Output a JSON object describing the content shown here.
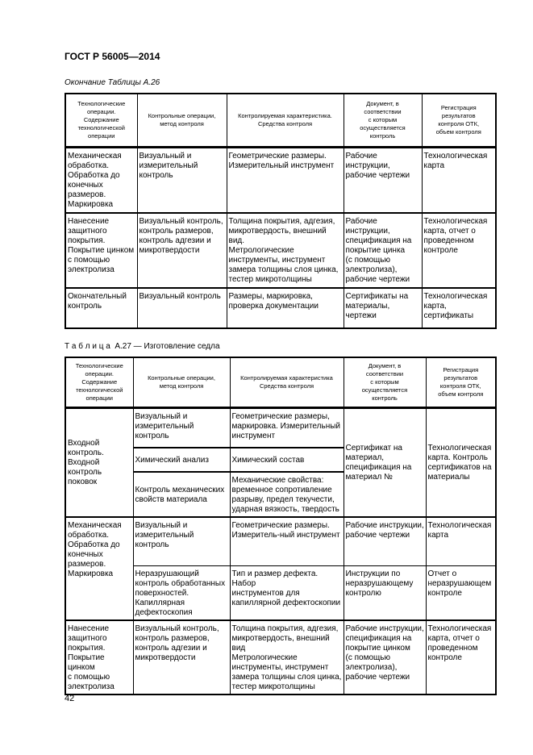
{
  "doc_header": "ГОСТ Р 56005—2014",
  "table1": {
    "caption": "Окончание Таблицы А.26",
    "headers": [
      "Технологические\nоперации.\nСодержание\nтехнологической\nоперации",
      "Контрольные операции,\nметод контроля",
      "Контролируемая характеристика.\nСредства контроля",
      "Документ, в\nсоответствии\nс которым\nосуществляется\nконтроль",
      "Регистрация\nрезультатов\nконтроля ОТК,\nобъем контроля"
    ],
    "rows": [
      [
        "Механическая\nобработка.\nОбработка до\nконечных\nразмеров.\nМаркировка",
        "Визуальный и\nизмерительный\nконтроль",
        "Геометрические размеры.\nИзмерительный инструмент",
        "Рабочие\nинструкции,\nрабочие чертежи",
        "Технологическая\nкарта"
      ],
      [
        "Нанесение\nзащитного\nпокрытия.\nПокрытие цинком\nс помощью\nэлектролиза",
        "Визуальный контроль,\nконтроль размеров,\nконтроль адгезии и\nмикротвердости",
        "Толщина покрытия, адгезия,\nмикротвердость, внешний вид.\nМетрологические\nинструменты, инструмент\nзамера толщины слоя цинка,\nтестер микротолщины",
        "Рабочие\nинструкции,\nспецификация на\nпокрытие цинка\n(с помощью\nэлектролиза),\nрабочие чертежи",
        "Технологическая\nкарта, отчет о\nпроведенном\nконтроле"
      ],
      [
        "Окончательный\nконтроль",
        "Визуальный контроль",
        "Размеры, маркировка,\nпроверка документации",
        "Сертификаты на\nматериалы,\nчертежи",
        "Технологическая\nкарта,\nсертификаты"
      ]
    ]
  },
  "table2": {
    "caption": "Т а б л и ц а  А.27 — Изготовление седла",
    "headers": [
      "Технологические\nоперации.\nСодержание\nтехнологической\nоперации",
      "Контрольные операции,\nметод контроля",
      "Контролируемая характеристика\nСредства контроля",
      "Документ, в\nсоответствии\nс которым\nосуществляется\nконтроль",
      "Регистрация\nрезультатов\nконтроля ОТК,\nобъем контроля"
    ],
    "groups": [
      {
        "operation": "Входной\nконтроль.\nВходной\nконтроль поковок",
        "document": "Сертификат на\nматериал,\nспецификация на\nматериал №",
        "registration": "Технологическая\nкарта. Контроль\nсертификатов на\nматериалы",
        "subrows": [
          {
            "method": "Визуальный и\nизмерительный\nконтроль",
            "characteristic": "Геометрические размеры,\nмаркировка. Измерительный\nинструмент"
          },
          {
            "method": "Химический анализ",
            "characteristic": "Химический состав"
          },
          {
            "method": "Контроль механических\nсвойств материала",
            "characteristic": "Механические свойства:\nвременное сопротивление\nразрыву, предел текучести,\nударная вязкость, твердость"
          }
        ]
      },
      {
        "operation": "Механическая\nобработка.\nОбработка до\nконечных\nразмеров.\nМаркировка",
        "subrows": [
          {
            "method": "Визуальный и\nизмерительный\nконтроль",
            "characteristic": "Геометрические размеры.\nИзмеритель-ный инструмент",
            "document": "Рабочие инструкции,\nрабочие чертежи",
            "registration": "Технологическая\nкарта"
          },
          {
            "method": "Неразрушающий\nконтроль обработанных\nповерхностей.\nКапиллярная\nдефектоскопия",
            "characteristic": "Тип и размер дефекта. Набор\nинструментов для\nкапиллярной дефектоскопии",
            "document": "Инструкции по\nнеразрушающему\nконтролю",
            "registration": "Отчет о\nнеразрушающем\nконтроле"
          }
        ]
      },
      {
        "operation": "Нанесение\nзащитного\nпокрытия.\nПокрытие цинком\nс помощью\nэлектролиза",
        "method": "Визуальный контроль,\nконтроль размеров,\nконтроль адгезии и\nмикротвердости",
        "characteristic": "Толщина покрытия, адгезия,\nмикротвердость, внешний вид\nМетрологические\nинструменты, инструмент\nзамера толщины слоя цинка,\nтестер микротолщины",
        "document": "Рабочие инструкции,\nспецификация на\nпокрытие цинком\n(с помощью\nэлектролиза),\nрабочие чертежи",
        "registration": "Технологическая\nкарта, отчет о\nпроведенном\nконтроле"
      }
    ]
  },
  "page_number": "42"
}
